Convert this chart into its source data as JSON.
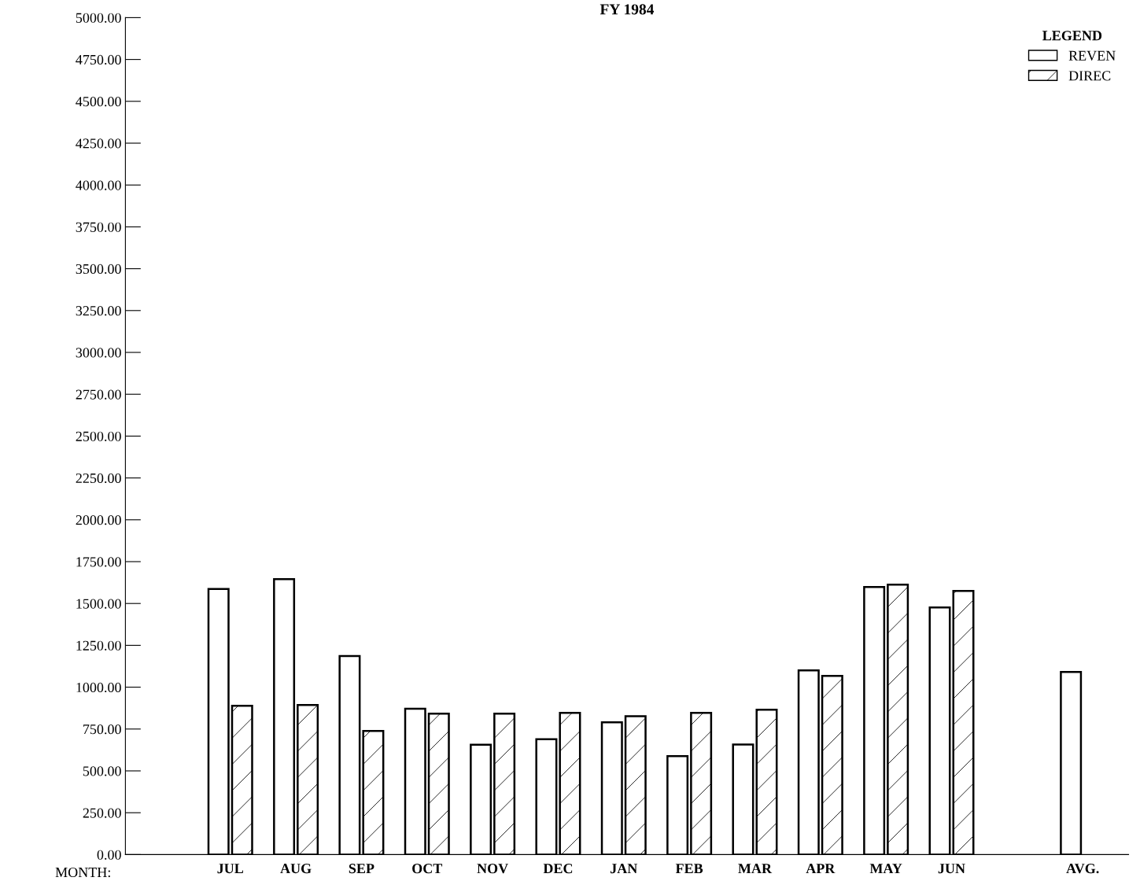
{
  "chart_data": {
    "type": "bar",
    "title": "FY 1984",
    "xlabel": "MONTH:",
    "legend_title": "LEGEND",
    "categories": [
      "JUL",
      "AUG",
      "SEP",
      "OCT",
      "NOV",
      "DEC",
      "JAN",
      "FEB",
      "MAR",
      "APR",
      "MAY",
      "JUN",
      null,
      "AVG."
    ],
    "series": [
      {
        "name": "REVEN",
        "color": "#ffffff",
        "values": [
          1587,
          1646,
          1186,
          871,
          656,
          689,
          790,
          588,
          658,
          1100,
          1598,
          1476,
          null,
          1091
        ]
      },
      {
        "name": "DIREC",
        "color": "#000000",
        "values": [
          889,
          893,
          739,
          842,
          842,
          846,
          827,
          846,
          865,
          1067,
          1613,
          1575,
          null,
          null
        ]
      }
    ],
    "ylim": [
      0,
      5000
    ],
    "yticks": [
      {
        "value": 0,
        "label": "0.00"
      },
      {
        "value": 250,
        "label": "250.00"
      },
      {
        "value": 500,
        "label": "500.00"
      },
      {
        "value": 750,
        "label": "750.00"
      },
      {
        "value": 1000,
        "label": "1000.00"
      },
      {
        "value": 1250,
        "label": "1250.00"
      },
      {
        "value": 1500,
        "label": "1500.00"
      },
      {
        "value": 1750,
        "label": "1750.00"
      },
      {
        "value": 2000,
        "label": "2000.00"
      },
      {
        "value": 2250,
        "label": "2250.00"
      },
      {
        "value": 2500,
        "label": "2500.00"
      },
      {
        "value": 2750,
        "label": "2750.00"
      },
      {
        "value": 3000,
        "label": "3000.00"
      },
      {
        "value": 3250,
        "label": "3250.00"
      },
      {
        "value": 3500,
        "label": "3500.00"
      },
      {
        "value": 3750,
        "label": "3750.00"
      },
      {
        "value": 4000,
        "label": "4000.00"
      },
      {
        "value": 4250,
        "label": "4250.00"
      },
      {
        "value": 4500,
        "label": "4500.00"
      },
      {
        "value": 4750,
        "label": "4750.00"
      },
      {
        "value": 5000,
        "label": "5000.00"
      }
    ],
    "grid": false,
    "legend": "top right"
  }
}
